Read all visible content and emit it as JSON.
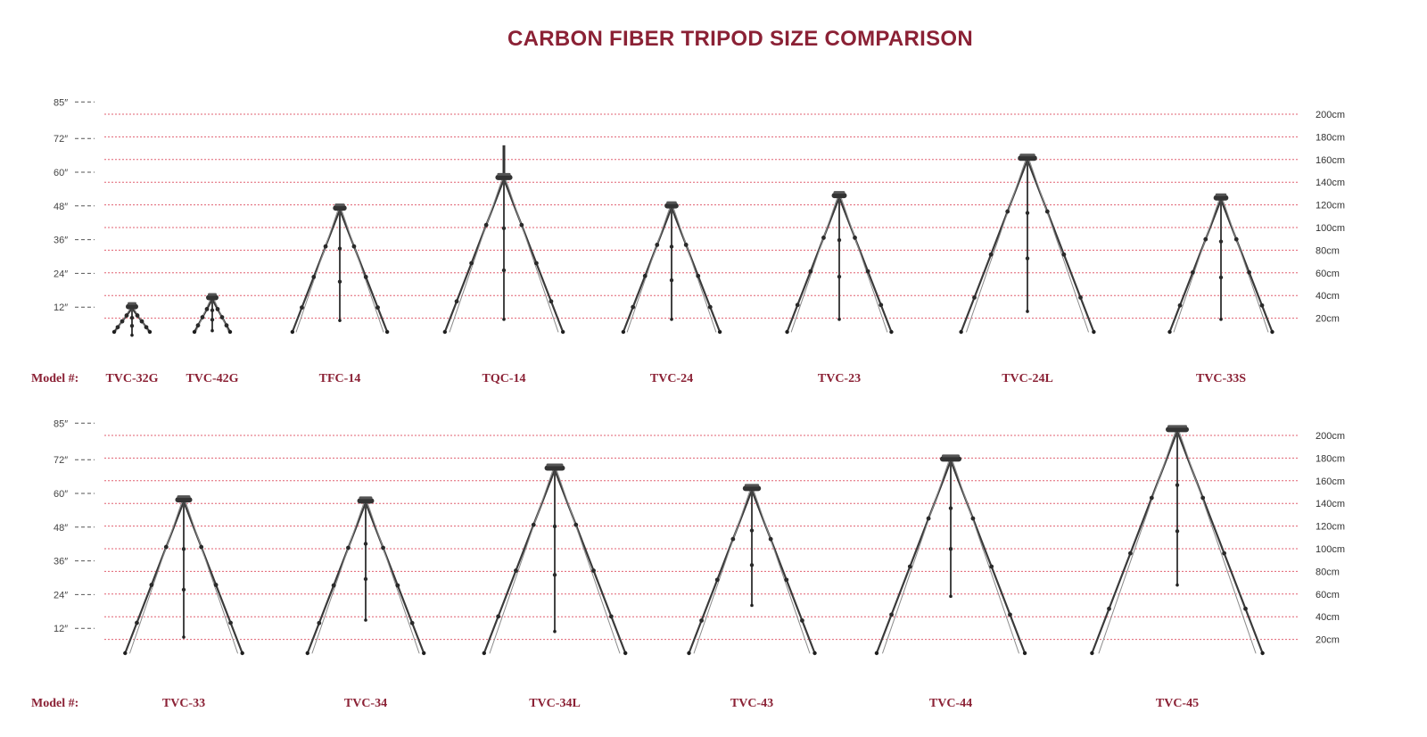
{
  "title": "CARBON FIBER TRIPOD SIZE COMPARISON",
  "row_label": "Model #:",
  "colors": {
    "accent": "#8b2135",
    "gridline": "#e06070",
    "tripod_dark": "#3a3a3a",
    "tripod_light": "#8a8a8a"
  },
  "chart_data": [
    {
      "type": "diagram",
      "left_axis_ticks": [
        "85″",
        "72″",
        "60″",
        "48″",
        "36″",
        "24″",
        "12″"
      ],
      "left_axis_values_in": [
        85,
        72,
        60,
        48,
        36,
        24,
        12
      ],
      "right_axis_ticks": [
        "200cm",
        "180cm",
        "160cm",
        "140cm",
        "120cm",
        "100cm",
        "80cm",
        "60cm",
        "40cm",
        "20cm"
      ],
      "right_axis_values_cm": [
        200,
        180,
        160,
        140,
        120,
        100,
        80,
        60,
        40,
        20
      ],
      "models": [
        {
          "name": "TVC-32G",
          "height_cm": 31,
          "column_bottom_cm": 5,
          "has_center_column": false
        },
        {
          "name": "TVC-42G",
          "height_cm": 39,
          "column_bottom_cm": 9,
          "has_center_column": false
        },
        {
          "name": "TFC-14",
          "height_cm": 118,
          "column_bottom_cm": 18,
          "has_center_column": false
        },
        {
          "name": "TQC-14",
          "height_cm": 145,
          "column_bottom_cm": 19,
          "has_center_column": true
        },
        {
          "name": "TVC-24",
          "height_cm": 120,
          "column_bottom_cm": 19,
          "has_center_column": false
        },
        {
          "name": "TVC-23",
          "height_cm": 129,
          "column_bottom_cm": 19,
          "has_center_column": false
        },
        {
          "name": "TVC-24L",
          "height_cm": 162,
          "column_bottom_cm": 26,
          "has_center_column": false
        },
        {
          "name": "TVC-33S",
          "height_cm": 127,
          "column_bottom_cm": 19,
          "has_center_column": false
        }
      ]
    },
    {
      "type": "diagram",
      "left_axis_ticks": [
        "85″",
        "72″",
        "60″",
        "48″",
        "36″",
        "24″",
        "12″"
      ],
      "left_axis_values_in": [
        85,
        72,
        60,
        48,
        36,
        24,
        12
      ],
      "right_axis_ticks": [
        "200cm",
        "180cm",
        "160cm",
        "140cm",
        "120cm",
        "100cm",
        "80cm",
        "60cm",
        "40cm",
        "20cm"
      ],
      "right_axis_values_cm": [
        200,
        180,
        160,
        140,
        120,
        100,
        80,
        60,
        40,
        20
      ],
      "models": [
        {
          "name": "TVC-33",
          "height_cm": 144,
          "column_bottom_cm": 22,
          "has_center_column": false
        },
        {
          "name": "TVC-34",
          "height_cm": 143,
          "column_bottom_cm": 37,
          "has_center_column": false
        },
        {
          "name": "TVC-34L",
          "height_cm": 172,
          "column_bottom_cm": 27,
          "has_center_column": false
        },
        {
          "name": "TVC-43",
          "height_cm": 154,
          "column_bottom_cm": 50,
          "has_center_column": false
        },
        {
          "name": "TVC-44",
          "height_cm": 180,
          "column_bottom_cm": 58,
          "has_center_column": false
        },
        {
          "name": "TVC-45",
          "height_cm": 206,
          "column_bottom_cm": 68,
          "has_center_column": false
        }
      ]
    }
  ]
}
